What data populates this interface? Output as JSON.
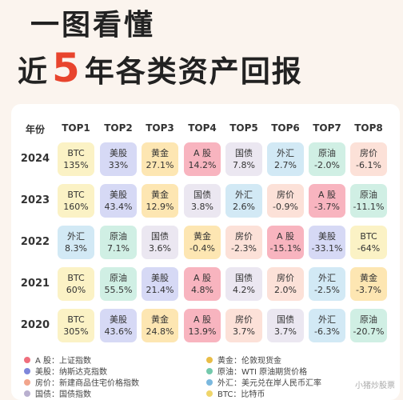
{
  "title": {
    "line1": "一图看懂",
    "line2_prefix": "近",
    "line2_number": "5",
    "line2_suffix": "年各类资产回报"
  },
  "table": {
    "year_header": "年份",
    "headers": [
      "TOP1",
      "TOP2",
      "TOP3",
      "TOP4",
      "TOP5",
      "TOP6",
      "TOP7",
      "TOP8"
    ],
    "rows": [
      {
        "year": "2024",
        "cells": [
          {
            "asset": "BTC",
            "value": "135%"
          },
          {
            "asset": "美股",
            "value": "33%"
          },
          {
            "asset": "黄金",
            "value": "27.1%"
          },
          {
            "asset": "A 股",
            "value": "14.2%"
          },
          {
            "asset": "国债",
            "value": "7.8%"
          },
          {
            "asset": "外汇",
            "value": "2.7%"
          },
          {
            "asset": "原油",
            "value": "-2.0%"
          },
          {
            "asset": "房价",
            "value": "-6.1%"
          }
        ]
      },
      {
        "year": "2023",
        "cells": [
          {
            "asset": "BTC",
            "value": "160%"
          },
          {
            "asset": "美股",
            "value": "43.4%"
          },
          {
            "asset": "黄金",
            "value": "12.9%"
          },
          {
            "asset": "国债",
            "value": "3.8%"
          },
          {
            "asset": "外汇",
            "value": "2.6%"
          },
          {
            "asset": "房价",
            "value": "-0.9%"
          },
          {
            "asset": "A 股",
            "value": "-3.7%"
          },
          {
            "asset": "原油",
            "value": "-11.1%"
          }
        ]
      },
      {
        "year": "2022",
        "cells": [
          {
            "asset": "外汇",
            "value": "8.3%"
          },
          {
            "asset": "原油",
            "value": "7.1%"
          },
          {
            "asset": "国债",
            "value": "3.6%"
          },
          {
            "asset": "黄金",
            "value": "-0.4%"
          },
          {
            "asset": "房价",
            "value": "-2.3%"
          },
          {
            "asset": "A 股",
            "value": "-15.1%"
          },
          {
            "asset": "美股",
            "value": "-33.1%"
          },
          {
            "asset": "BTC",
            "value": "-64%"
          }
        ]
      },
      {
        "year": "2021",
        "cells": [
          {
            "asset": "BTC",
            "value": "60%"
          },
          {
            "asset": "原油",
            "value": "55.5%"
          },
          {
            "asset": "美股",
            "value": "21.4%"
          },
          {
            "asset": "A 股",
            "value": "4.8%"
          },
          {
            "asset": "国债",
            "value": "4.2%"
          },
          {
            "asset": "房价",
            "value": "2.0%"
          },
          {
            "asset": "外汇",
            "value": "-2.5%"
          },
          {
            "asset": "黄金",
            "value": "-3.7%"
          }
        ]
      },
      {
        "year": "2020",
        "cells": [
          {
            "asset": "BTC",
            "value": "305%"
          },
          {
            "asset": "美股",
            "value": "43.6%"
          },
          {
            "asset": "黄金",
            "value": "24.8%"
          },
          {
            "asset": "A 股",
            "value": "13.9%"
          },
          {
            "asset": "房价",
            "value": "3.7%"
          },
          {
            "asset": "国债",
            "value": "3.7%"
          },
          {
            "asset": "外汇",
            "value": "-6.3%"
          },
          {
            "asset": "原油",
            "value": "-20.7%"
          }
        ]
      }
    ]
  },
  "asset_colors": {
    "BTC": "#fbf2c5",
    "美股": "#d6d9f5",
    "黄金": "#fde6b2",
    "A 股": "#f8b4bf",
    "国债": "#ebe7f1",
    "外汇": "#d2e9f5",
    "原油": "#d0efe4",
    "房价": "#fce1d8"
  },
  "legend": [
    {
      "asset": "A 股",
      "text": "A 股：上证指数"
    },
    {
      "asset": "黄金",
      "text": "黄金：伦敦现货金"
    },
    {
      "asset": "美股",
      "text": "美股：纳斯达克指数"
    },
    {
      "asset": "原油",
      "text": "原油：WTI 原油期货价格"
    },
    {
      "asset": "房价",
      "text": "房价：新建商品住宅价格指数"
    },
    {
      "asset": "外汇",
      "text": "外汇：美元兑在岸人民币汇率"
    },
    {
      "asset": "国债",
      "text": "国债：国债指数"
    },
    {
      "asset": "BTC",
      "text": "BTC：比特币"
    }
  ],
  "legend_dot_colors": {
    "A 股": "#ef6f7d",
    "黄金": "#e9bd47",
    "美股": "#7e87db",
    "原油": "#74c9ac",
    "房价": "#f2a58c",
    "外汇": "#7ab8de",
    "国债": "#b9b0cf",
    "BTC": "#efd56a"
  },
  "watermark": "小猪炒股票"
}
